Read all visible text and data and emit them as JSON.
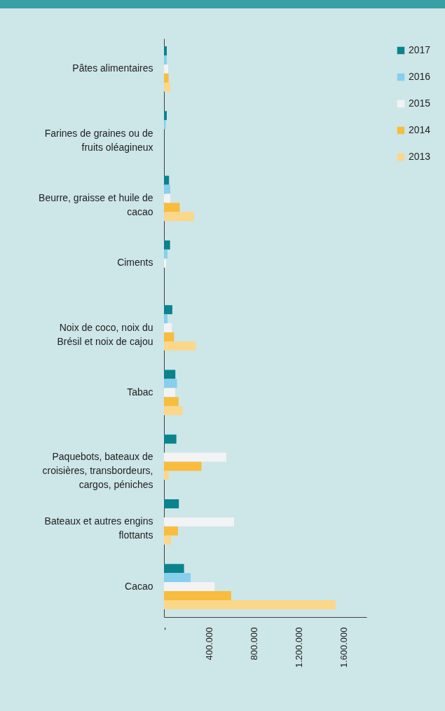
{
  "chart_data": {
    "type": "bar",
    "orientation": "horizontal",
    "categories": [
      "Pâtes alimentaires",
      "Farines de graines ou de fruits oléagineux",
      "Beurre, graisse et huile de cacao",
      "Ciments",
      "Noix de coco, noix du Brésil et noix de cajou",
      "Tabac",
      "Paquebots, bateaux de croisières, transbordeurs, cargos, péniches",
      "Bateaux et autres engins flottants",
      "Cacao"
    ],
    "series": [
      {
        "name": "2017",
        "color": "#0a838d",
        "values": [
          25000,
          25000,
          45000,
          54000,
          74000,
          101000,
          110000,
          132000,
          178000
        ]
      },
      {
        "name": "2016",
        "color": "#87cfec",
        "values": [
          25000,
          15000,
          56000,
          31000,
          31000,
          116000,
          0,
          0,
          237000
        ]
      },
      {
        "name": "2015",
        "color": "#f2f3f4",
        "values": [
          37000,
          0,
          56000,
          19000,
          70000,
          100000,
          554000,
          622000,
          450000
        ]
      },
      {
        "name": "2014",
        "color": "#f8bc3f",
        "values": [
          41000,
          0,
          140000,
          0,
          89000,
          130000,
          333000,
          124000,
          597000
        ]
      },
      {
        "name": "2013",
        "color": "#fbd78a",
        "values": [
          56000,
          0,
          267000,
          0,
          281000,
          165000,
          41000,
          62000,
          1525000
        ]
      }
    ],
    "xlim": [
      0,
      1800000
    ],
    "xticks": [
      {
        "value": 0,
        "label": "-"
      },
      {
        "value": 400000,
        "label": "400.000"
      },
      {
        "value": 800000,
        "label": "800.000"
      },
      {
        "value": 1200000,
        "label": "1.200.000"
      },
      {
        "value": 1600000,
        "label": "1.600.000"
      }
    ],
    "legend": "top right",
    "grid": false
  }
}
